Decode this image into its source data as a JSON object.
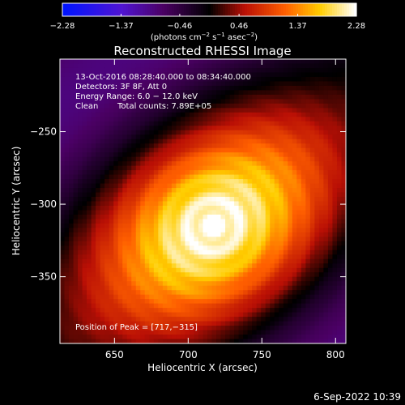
{
  "chart_data": {
    "type": "heatmap",
    "title": "Reconstructed RHESSI Image",
    "colorbar": {
      "min": -2.28,
      "max": 2.28,
      "ticks": [
        -2.28,
        -1.37,
        -0.46,
        0.46,
        1.37,
        2.28
      ],
      "tick_labels": [
        "−2.28",
        "−1.37",
        "−0.46",
        "0.46",
        "1.37",
        "2.28"
      ],
      "label_main": "(photons cm",
      "label_sup1": "−2",
      "label_mid": " s",
      "label_sup2": "−1",
      "label_mid2": " asec",
      "label_sup3": "−2",
      "label_end": ")",
      "colormap": "rhessi-blue-black-red-yellow-white"
    },
    "xlabel": "Heliocentric X (arcsec)",
    "ylabel": "Heliocentric Y (arcsec)",
    "xlim": [
      613,
      807
    ],
    "ylim": [
      -396,
      -200
    ],
    "xticks": [
      650,
      700,
      750,
      800
    ],
    "xtick_labels": [
      "650",
      "700",
      "750",
      "800"
    ],
    "yticks": [
      -250,
      -300,
      -350
    ],
    "ytick_labels": [
      "−250",
      "−300",
      "−350"
    ],
    "source": {
      "peak": [
        717,
        -315
      ],
      "sigma_major": 62,
      "sigma_minor": 42,
      "angle_deg": 38,
      "peak_value": 2.28
    },
    "annotations": {
      "time": "13-Oct-2016 08:28:40.000 to 08:34:40.000",
      "detectors": "Detectors: 3F 8F, Att 0",
      "energy": "Energy Range: 6.0 − 12.0 keV",
      "clean": "Clean",
      "counts": "Total counts: 7.89E+05",
      "peak": "Position of Peak = [717,−315]"
    },
    "footer_date": "6-Sep-2022 10:39"
  }
}
